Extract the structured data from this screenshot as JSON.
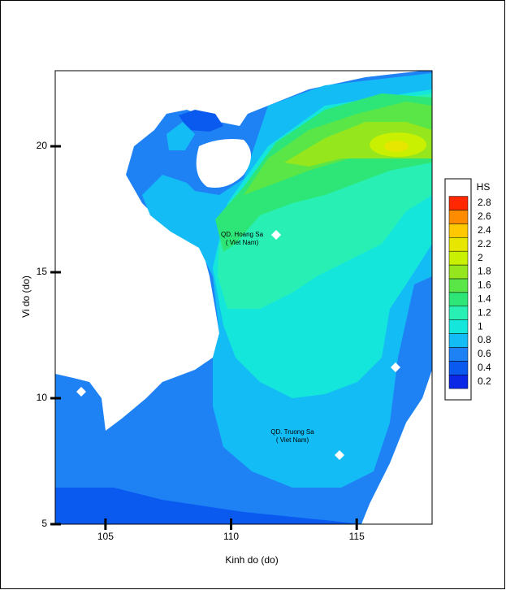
{
  "chart_data": {
    "type": "contour",
    "xlabel": "Kinh do (do)",
    "ylabel": "Vi do (do)",
    "xlim": [
      103,
      118
    ],
    "ylim": [
      5,
      23
    ],
    "xticks": [
      105,
      110,
      115
    ],
    "yticks": [
      5,
      10,
      15,
      20
    ],
    "legend": {
      "title": "HS",
      "levels": [
        0.2,
        0.4,
        0.6,
        0.8,
        1,
        1.2,
        1.4,
        1.6,
        1.8,
        2,
        2.2,
        2.4,
        2.6,
        2.8
      ],
      "colors": [
        "#0a28e6",
        "#0a5af0",
        "#1e82f5",
        "#14bcf5",
        "#14e6dc",
        "#28f0b4",
        "#2ee678",
        "#5ae646",
        "#96e61e",
        "#c8f000",
        "#e6e600",
        "#ffc800",
        "#ff8c00",
        "#ff2800"
      ]
    },
    "annotations": [
      "QD. Hoang Sa",
      "( Viet Nam)",
      "QD. Truong Sa",
      "( Viet Nam)"
    ]
  }
}
